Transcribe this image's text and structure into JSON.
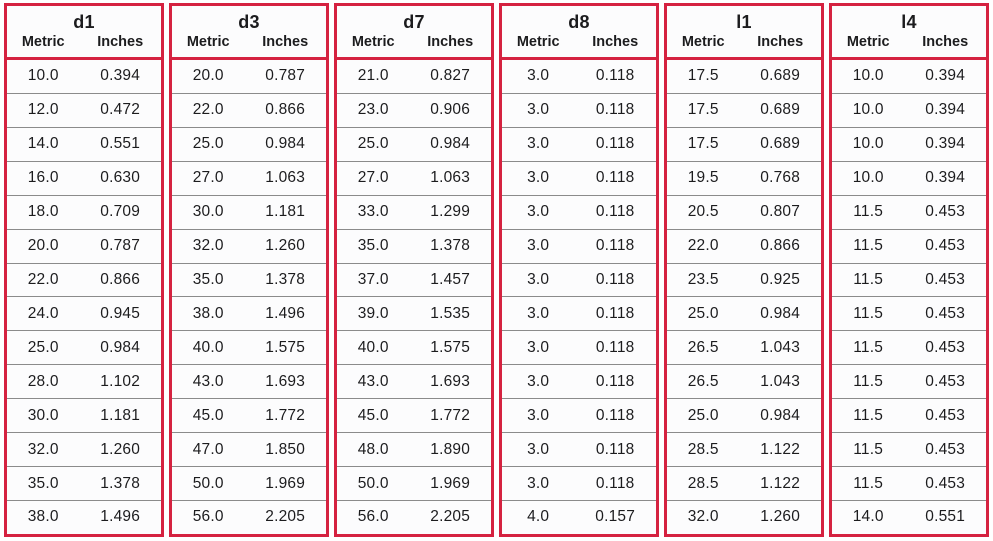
{
  "colors": {
    "border": "#d52240",
    "row_line": "#8b8b8b",
    "text": "#1c1c1e",
    "background": "#fcfcfd"
  },
  "table": {
    "subheaders": {
      "metric": "Metric",
      "inches": "Inches"
    },
    "groups": [
      {
        "title": "d1",
        "rows": [
          [
            "10.0",
            "0.394"
          ],
          [
            "12.0",
            "0.472"
          ],
          [
            "14.0",
            "0.551"
          ],
          [
            "16.0",
            "0.630"
          ],
          [
            "18.0",
            "0.709"
          ],
          [
            "20.0",
            "0.787"
          ],
          [
            "22.0",
            "0.866"
          ],
          [
            "24.0",
            "0.945"
          ],
          [
            "25.0",
            "0.984"
          ],
          [
            "28.0",
            "1.102"
          ],
          [
            "30.0",
            "1.181"
          ],
          [
            "32.0",
            "1.260"
          ],
          [
            "35.0",
            "1.378"
          ],
          [
            "38.0",
            "1.496"
          ]
        ]
      },
      {
        "title": "d3",
        "rows": [
          [
            "20.0",
            "0.787"
          ],
          [
            "22.0",
            "0.866"
          ],
          [
            "25.0",
            "0.984"
          ],
          [
            "27.0",
            "1.063"
          ],
          [
            "30.0",
            "1.181"
          ],
          [
            "32.0",
            "1.260"
          ],
          [
            "35.0",
            "1.378"
          ],
          [
            "38.0",
            "1.496"
          ],
          [
            "40.0",
            "1.575"
          ],
          [
            "43.0",
            "1.693"
          ],
          [
            "45.0",
            "1.772"
          ],
          [
            "47.0",
            "1.850"
          ],
          [
            "50.0",
            "1.969"
          ],
          [
            "56.0",
            "2.205"
          ]
        ]
      },
      {
        "title": "d7",
        "rows": [
          [
            "21.0",
            "0.827"
          ],
          [
            "23.0",
            "0.906"
          ],
          [
            "25.0",
            "0.984"
          ],
          [
            "27.0",
            "1.063"
          ],
          [
            "33.0",
            "1.299"
          ],
          [
            "35.0",
            "1.378"
          ],
          [
            "37.0",
            "1.457"
          ],
          [
            "39.0",
            "1.535"
          ],
          [
            "40.0",
            "1.575"
          ],
          [
            "43.0",
            "1.693"
          ],
          [
            "45.0",
            "1.772"
          ],
          [
            "48.0",
            "1.890"
          ],
          [
            "50.0",
            "1.969"
          ],
          [
            "56.0",
            "2.205"
          ]
        ]
      },
      {
        "title": "d8",
        "rows": [
          [
            "3.0",
            "0.118"
          ],
          [
            "3.0",
            "0.118"
          ],
          [
            "3.0",
            "0.118"
          ],
          [
            "3.0",
            "0.118"
          ],
          [
            "3.0",
            "0.118"
          ],
          [
            "3.0",
            "0.118"
          ],
          [
            "3.0",
            "0.118"
          ],
          [
            "3.0",
            "0.118"
          ],
          [
            "3.0",
            "0.118"
          ],
          [
            "3.0",
            "0.118"
          ],
          [
            "3.0",
            "0.118"
          ],
          [
            "3.0",
            "0.118"
          ],
          [
            "3.0",
            "0.118"
          ],
          [
            "4.0",
            "0.157"
          ]
        ]
      },
      {
        "title": "l1",
        "rows": [
          [
            "17.5",
            "0.689"
          ],
          [
            "17.5",
            "0.689"
          ],
          [
            "17.5",
            "0.689"
          ],
          [
            "19.5",
            "0.768"
          ],
          [
            "20.5",
            "0.807"
          ],
          [
            "22.0",
            "0.866"
          ],
          [
            "23.5",
            "0.925"
          ],
          [
            "25.0",
            "0.984"
          ],
          [
            "26.5",
            "1.043"
          ],
          [
            "26.5",
            "1.043"
          ],
          [
            "25.0",
            "0.984"
          ],
          [
            "28.5",
            "1.122"
          ],
          [
            "28.5",
            "1.122"
          ],
          [
            "32.0",
            "1.260"
          ]
        ]
      },
      {
        "title": "l4",
        "rows": [
          [
            "10.0",
            "0.394"
          ],
          [
            "10.0",
            "0.394"
          ],
          [
            "10.0",
            "0.394"
          ],
          [
            "10.0",
            "0.394"
          ],
          [
            "11.5",
            "0.453"
          ],
          [
            "11.5",
            "0.453"
          ],
          [
            "11.5",
            "0.453"
          ],
          [
            "11.5",
            "0.453"
          ],
          [
            "11.5",
            "0.453"
          ],
          [
            "11.5",
            "0.453"
          ],
          [
            "11.5",
            "0.453"
          ],
          [
            "11.5",
            "0.453"
          ],
          [
            "11.5",
            "0.453"
          ],
          [
            "14.0",
            "0.551"
          ]
        ]
      }
    ]
  }
}
